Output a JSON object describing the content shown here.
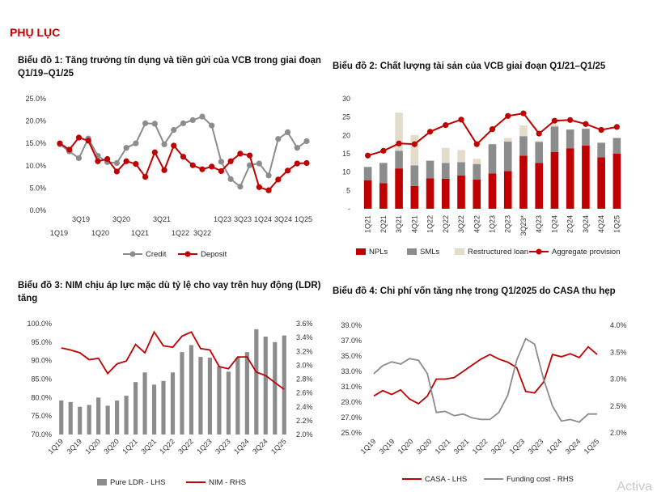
{
  "header": "PHỤ LỤC",
  "watermark": "Activa",
  "chart_data": [
    {
      "id": "c1",
      "type": "line",
      "title": "Biểu đồ 1: Tăng trưởng tín dụng và tiền gửi của VCB trong giai đoạn Q1/19–Q1/25",
      "title_lines": [
        "Biểu đồ 1: Tăng trưởng tín dụng và tiền gửi của VCB trong giai đoạn",
        "Q1/19–Q1/25"
      ],
      "y_ticks": [
        "25.0%",
        "20.0%",
        "15.0%",
        "10.0%",
        "5.0%",
        "0.0%"
      ],
      "ylim": [
        0,
        25
      ],
      "x_labels_upper": [
        "3Q19",
        "3Q20",
        "3Q21",
        "1Q23",
        "3Q23",
        "1Q24",
        "3Q24",
        "1Q25"
      ],
      "x_labels_lower": [
        "1Q19",
        "1Q20",
        "1Q21",
        "1Q22",
        "3Q22"
      ],
      "series": [
        {
          "name": "Credit",
          "color": "#8c8c8c",
          "values": [
            14.8,
            13.2,
            11.7,
            16.1,
            12.2,
            10.8,
            10.6,
            14.0,
            15.0,
            19.5,
            19.4,
            14.8,
            18.0,
            19.5,
            20.2,
            21.0,
            19.0,
            10.9,
            7.0,
            5.3,
            10.1,
            10.5,
            7.8,
            16.0,
            17.5,
            14.0,
            15.5
          ]
        },
        {
          "name": "Deposit",
          "color": "#c00000",
          "values": [
            15.0,
            13.6,
            16.3,
            15.6,
            11.0,
            11.5,
            8.7,
            11.0,
            10.4,
            7.5,
            13.0,
            9.0,
            14.5,
            12.0,
            10.1,
            9.2,
            9.8,
            8.8,
            11.0,
            12.7,
            12.3,
            5.2,
            4.5,
            6.9,
            8.9,
            10.5,
            10.6
          ]
        }
      ]
    },
    {
      "id": "c2",
      "type": "bar",
      "stacked": true,
      "title": "Biểu đồ 2: Chất lượng tài sản của VCB giai đoạn Q1/21–Q1/25",
      "categories": [
        "1Q21",
        "2Q21",
        "3Q21",
        "4Q21",
        "1Q22",
        "2Q22",
        "3Q22",
        "4Q22",
        "1Q23",
        "2Q23",
        "3Q23*",
        "4Q23",
        "1Q24",
        "2Q24",
        "3Q24",
        "4Q24",
        "1Q25"
      ],
      "y_ticks": [
        "30",
        "25",
        "20",
        "15",
        "10",
        "5",
        "-"
      ],
      "ylim": [
        0,
        30
      ],
      "series": [
        {
          "name": "NPLs",
          "color": "#c00000",
          "values": [
            7.8,
            7.0,
            11.0,
            6.2,
            8.3,
            8.2,
            9.1,
            8.0,
            9.6,
            10.3,
            14.5,
            12.5,
            15.5,
            16.5,
            17.2,
            14.0,
            15.0
          ]
        },
        {
          "name": "SMLs",
          "color": "#8c8c8c",
          "values": [
            3.6,
            5.5,
            4.8,
            5.6,
            4.8,
            4.3,
            3.6,
            4.2,
            8.0,
            8.0,
            5.3,
            5.7,
            6.9,
            5.1,
            4.6,
            4.0,
            4.3
          ]
        },
        {
          "name": "Restructured loan",
          "color": "#e3dccb",
          "values": [
            0,
            0,
            10.4,
            8.3,
            0,
            4.1,
            3.3,
            1.4,
            0,
            1.0,
            2.9,
            0.3,
            0.6,
            0,
            0,
            0,
            0
          ]
        }
      ],
      "line": {
        "name": "Aggregate provision",
        "color": "#c00000",
        "values": [
          14.5,
          15.8,
          17.8,
          17.6,
          21.0,
          22.8,
          24.3,
          17.6,
          21.7,
          25.3,
          26.0,
          20.5,
          24.0,
          24.2,
          23.1,
          21.5,
          22.3
        ]
      }
    },
    {
      "id": "c3",
      "type": "bar",
      "title": "Biểu đồ 3: NIM chịu áp lực mặc dù tỷ lệ cho vay trên huy động (LDR) tăng",
      "title_lines": [
        "Biểu đồ 3: NIM chịu áp lực mặc dù tỷ lệ cho vay trên huy động (LDR)",
        "tăng"
      ],
      "x_labels": [
        "1Q19",
        "3Q19",
        "1Q20",
        "3Q20",
        "1Q21",
        "3Q21",
        "1Q22",
        "3Q22",
        "1Q23",
        "3Q23",
        "1Q24",
        "3Q24",
        "1Q25"
      ],
      "y_left_ticks": [
        "100.0%",
        "95.0%",
        "90.0%",
        "85.0%",
        "80.0%",
        "75.0%",
        "70.0%"
      ],
      "y_right_ticks": [
        "3.6%",
        "3.4%",
        "3.2%",
        "3.0%",
        "2.8%",
        "2.6%",
        "2.4%",
        "2.2%",
        "2.0%"
      ],
      "ylim_left": [
        70,
        100
      ],
      "ylim_right": [
        2.0,
        3.6
      ],
      "bars": {
        "name": "Pure LDR - LHS",
        "color": "#8c8c8c",
        "values": [
          79.2,
          78.8,
          77.5,
          78.0,
          80.0,
          77.8,
          79.2,
          80.5,
          84.2,
          86.8,
          83.5,
          84.5,
          86.8,
          92.3,
          94.2,
          91.0,
          90.8,
          88.5,
          87.0,
          90.8,
          92.3,
          98.5,
          96.5,
          95.0,
          96.8
        ]
      },
      "line": {
        "name": "NIM - RHS",
        "color": "#c00000",
        "values": [
          3.25,
          3.22,
          3.18,
          3.08,
          3.1,
          2.88,
          3.02,
          3.06,
          3.3,
          3.18,
          3.48,
          3.28,
          3.26,
          3.42,
          3.48,
          3.24,
          3.22,
          2.98,
          2.95,
          3.12,
          3.12,
          2.9,
          2.85,
          2.75,
          2.65
        ]
      }
    },
    {
      "id": "c4",
      "type": "line",
      "title": "Biểu đồ 4: Chi phí vốn tăng nhẹ trong Q1/2025 do CASA thu hẹp",
      "x_labels": [
        "1Q19",
        "3Q19",
        "1Q20",
        "3Q20",
        "1Q21",
        "3Q21",
        "1Q22",
        "3Q22",
        "1Q23",
        "3Q23",
        "1Q24",
        "3Q24",
        "1Q25"
      ],
      "y_left_ticks": [
        "39.0%",
        "37.0%",
        "35.0%",
        "33.0%",
        "31.0%",
        "29.0%",
        "27.0%",
        "25.0%"
      ],
      "y_right_ticks": [
        "4.0%",
        "3.5%",
        "3.0%",
        "2.5%",
        "2.0%"
      ],
      "ylim_left": [
        25,
        39
      ],
      "ylim_right": [
        2.0,
        4.0
      ],
      "series": [
        {
          "name": "CASA - LHS",
          "color": "#c00000",
          "axis": "left",
          "values": [
            29.8,
            30.5,
            30.0,
            30.6,
            29.4,
            28.8,
            29.8,
            32.0,
            32.0,
            32.2,
            33.0,
            33.8,
            34.6,
            35.2,
            34.6,
            34.2,
            33.5,
            30.4,
            30.2,
            31.6,
            35.2,
            34.9,
            35.3,
            34.8,
            36.2,
            35.2
          ]
        },
        {
          "name": "Funding cost - RHS",
          "color": "#8c8c8c",
          "axis": "right",
          "values": [
            3.1,
            3.25,
            3.32,
            3.28,
            3.38,
            3.35,
            3.1,
            2.38,
            2.4,
            2.32,
            2.35,
            2.28,
            2.25,
            2.25,
            2.38,
            2.7,
            3.35,
            3.75,
            3.65,
            3.0,
            2.5,
            2.22,
            2.25,
            2.2,
            2.35,
            2.35
          ]
        }
      ]
    }
  ]
}
